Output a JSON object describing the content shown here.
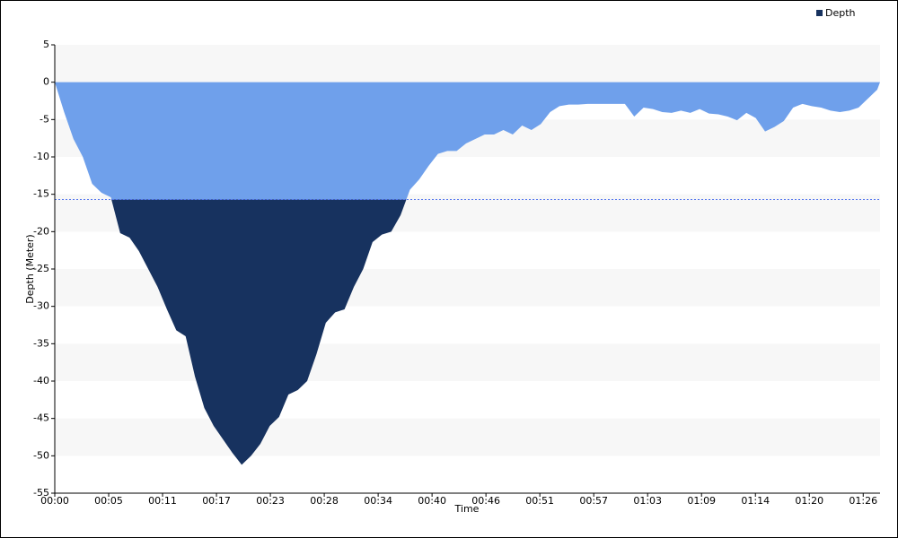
{
  "chart_data": {
    "type": "area",
    "x_label": "Time",
    "y_label": "Depth (Meter)",
    "x": [
      0,
      1,
      2,
      3,
      4,
      5,
      6,
      7,
      8,
      9,
      10,
      11,
      12,
      13,
      14,
      15,
      16,
      17,
      18,
      19,
      20,
      21,
      22,
      23,
      24,
      25,
      26,
      27,
      28,
      29,
      30,
      31,
      32,
      33,
      34,
      35,
      36,
      37,
      38,
      39,
      40,
      41,
      42,
      43,
      44,
      45,
      46,
      47,
      48,
      49,
      50,
      51,
      52,
      53,
      54,
      55,
      56,
      57,
      58,
      59,
      60,
      61,
      62,
      63,
      64,
      65,
      66,
      67,
      68,
      69,
      70,
      71,
      72,
      73,
      74,
      75,
      76,
      77,
      78,
      79,
      80,
      81,
      82,
      83,
      84,
      85,
      86,
      87,
      88,
      88.3
    ],
    "series": [
      {
        "name": "Depth",
        "color": "#17325f",
        "values": [
          0,
          -4,
          -7.6,
          -10,
          -13.6,
          -14.8,
          -15.4,
          -20.2,
          -20.8,
          -22.6,
          -25,
          -27.4,
          -30.4,
          -33.2,
          -34,
          -39.4,
          -43.6,
          -46,
          -47.8,
          -49.6,
          -51.2,
          -50,
          -48.4,
          -46,
          -44.8,
          -41.8,
          -41.2,
          -40,
          -36.4,
          -32.2,
          -30.8,
          -30.4,
          -27.4,
          -25,
          -21.4,
          -20.4,
          -20,
          -17.8,
          -14.4,
          -13,
          -11.2,
          -9.6,
          -9.2,
          -9.2,
          -8.2,
          -7.6,
          -7,
          -7,
          -6.4,
          -7,
          -5.8,
          -6.4,
          -5.6,
          -4,
          -3.2,
          -3,
          -3,
          -2.9,
          -2.9,
          -2.9,
          -2.9,
          -2.9,
          -4.6,
          -3.4,
          -3.6,
          -4,
          -4.1,
          -3.8,
          -4.1,
          -3.6,
          -4.2,
          -4.3,
          -4.6,
          -5.1,
          -4.1,
          -4.8,
          -6.6,
          -6,
          -5.2,
          -3.4,
          -2.9,
          -3.2,
          -3.4,
          -3.8,
          -4,
          -3.8,
          -3.4,
          -2.2,
          -1,
          0
        ]
      }
    ],
    "shallow_color": "#6fa0eb",
    "threshold": -15.7,
    "xlim": [
      0,
      88.3
    ],
    "xticks": [
      {
        "value": 0,
        "label": "00:00"
      },
      {
        "value": 5.767,
        "label": "00:05"
      },
      {
        "value": 11.533,
        "label": "00:11"
      },
      {
        "value": 17.3,
        "label": "00:17"
      },
      {
        "value": 23.067,
        "label": "00:23"
      },
      {
        "value": 28.833,
        "label": "00:28"
      },
      {
        "value": 34.6,
        "label": "00:34"
      },
      {
        "value": 40.367,
        "label": "00:40"
      },
      {
        "value": 46.133,
        "label": "00:46"
      },
      {
        "value": 51.9,
        "label": "00:51"
      },
      {
        "value": 57.667,
        "label": "00:57"
      },
      {
        "value": 63.433,
        "label": "01:03"
      },
      {
        "value": 69.2,
        "label": "01:09"
      },
      {
        "value": 74.967,
        "label": "01:14"
      },
      {
        "value": 80.733,
        "label": "01:20"
      },
      {
        "value": 86.5,
        "label": "01:26"
      }
    ],
    "ylim": [
      -55,
      5
    ],
    "yticks": [
      5,
      0,
      -5,
      -10,
      -15,
      -20,
      -25,
      -30,
      -35,
      -40,
      -45,
      -50,
      -55
    ],
    "grid": "bands",
    "legend": "top-right"
  }
}
